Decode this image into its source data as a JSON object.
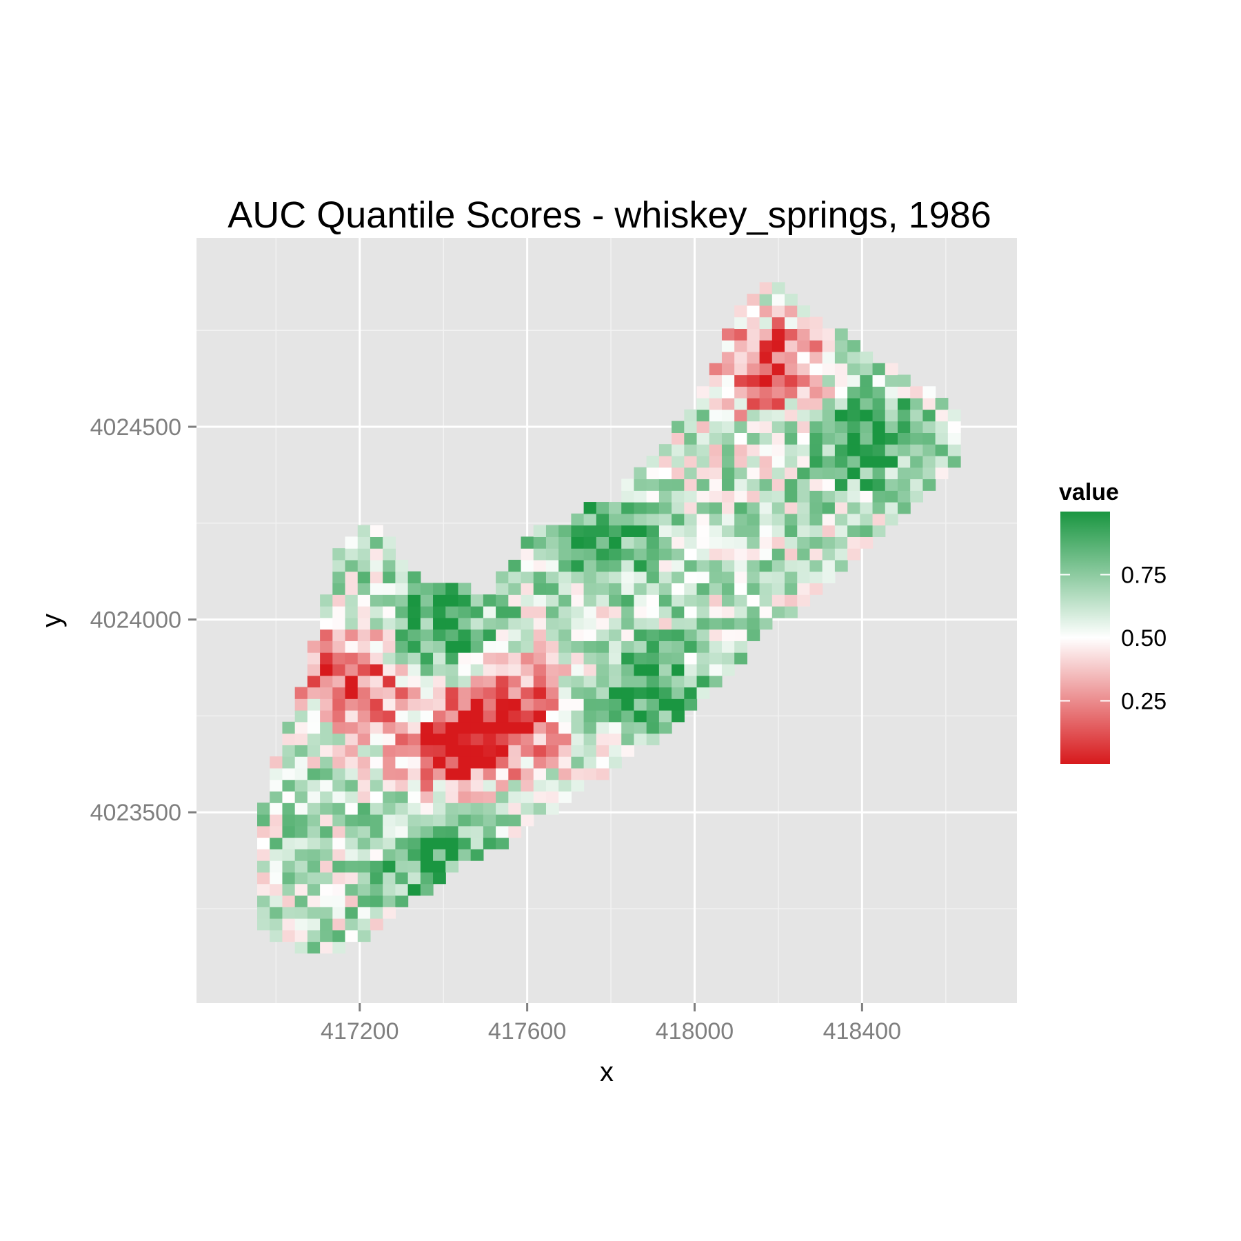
{
  "chart_data": {
    "type": "heatmap",
    "title": "AUC Quantile Scores - whiskey_springs, 1986",
    "xlabel": "x",
    "ylabel": "y",
    "xlim": [
      416810,
      418770
    ],
    "ylim": [
      4023005,
      4024990
    ],
    "x_ticks": [
      417200,
      417600,
      418000,
      418400
    ],
    "x_tick_labels": [
      "417200",
      "417600",
      "418000",
      "418400"
    ],
    "y_ticks": [
      4023500,
      4024000,
      4024500
    ],
    "y_tick_labels": [
      "4023500",
      "4024000",
      "4024500"
    ],
    "grid": true,
    "cell_size": 30,
    "legend": {
      "title": "value",
      "position": "right",
      "breaks": [
        0.25,
        0.5,
        0.75
      ],
      "break_labels": [
        "0.25",
        "0.50",
        "0.75"
      ],
      "range": [
        0.0,
        1.0
      ],
      "colors": {
        "low": "#d7191c",
        "mid": "#ffffff",
        "high": "#1a9641"
      }
    },
    "region": {
      "note": "values sampled over an irregular diagonal region (SW to NE)",
      "columns": [
        {
          "x": 416960,
          "y_min": 4023200,
          "y_max": 4023500
        },
        {
          "x": 417020,
          "y_min": 4023170,
          "y_max": 4023700
        },
        {
          "x": 417080,
          "y_min": 4023140,
          "y_max": 4023900
        },
        {
          "x": 417140,
          "y_min": 4023140,
          "y_max": 4024160
        },
        {
          "x": 417200,
          "y_min": 4023170,
          "y_max": 4024230
        },
        {
          "x": 417260,
          "y_min": 4023230,
          "y_max": 4024230
        },
        {
          "x": 417320,
          "y_min": 4023280,
          "y_max": 4024120
        },
        {
          "x": 417380,
          "y_min": 4023310,
          "y_max": 4024090
        },
        {
          "x": 417440,
          "y_min": 4023370,
          "y_max": 4024090
        },
        {
          "x": 417500,
          "y_min": 4023400,
          "y_max": 4024060
        },
        {
          "x": 417560,
          "y_min": 4023430,
          "y_max": 4024150
        },
        {
          "x": 417620,
          "y_min": 4023490,
          "y_max": 4024230
        },
        {
          "x": 417680,
          "y_min": 4023520,
          "y_max": 4024250
        },
        {
          "x": 417740,
          "y_min": 4023580,
          "y_max": 4024290
        },
        {
          "x": 417800,
          "y_min": 4023610,
          "y_max": 4024290
        },
        {
          "x": 417860,
          "y_min": 4023670,
          "y_max": 4024390
        },
        {
          "x": 417920,
          "y_min": 4023700,
          "y_max": 4024450
        },
        {
          "x": 417980,
          "y_min": 4023760,
          "y_max": 4024530
        },
        {
          "x": 418040,
          "y_min": 4023820,
          "y_max": 4024620
        },
        {
          "x": 418100,
          "y_min": 4023880,
          "y_max": 4024810
        },
        {
          "x": 418160,
          "y_min": 4023960,
          "y_max": 4024880
        },
        {
          "x": 418220,
          "y_min": 4024010,
          "y_max": 4024850
        },
        {
          "x": 418280,
          "y_min": 4024060,
          "y_max": 4024800
        },
        {
          "x": 418340,
          "y_min": 4024120,
          "y_max": 4024750
        },
        {
          "x": 418400,
          "y_min": 4024180,
          "y_max": 4024700
        },
        {
          "x": 418460,
          "y_min": 4024240,
          "y_max": 4024660
        },
        {
          "x": 418520,
          "y_min": 4024300,
          "y_max": 4024620
        },
        {
          "x": 418580,
          "y_min": 4024360,
          "y_max": 4024590
        },
        {
          "x": 418640,
          "y_min": 4024430,
          "y_max": 4024530
        }
      ],
      "hotspots_low": [
        {
          "x": 417170,
          "y": 4023850,
          "value": 0.05
        },
        {
          "x": 417420,
          "y": 4023660,
          "value": 0.1
        },
        {
          "x": 418180,
          "y": 4024660,
          "value": 0.05
        },
        {
          "x": 417560,
          "y": 4023750,
          "value": 0.1
        }
      ],
      "hotspots_high": [
        {
          "x": 417400,
          "y": 4024000,
          "value": 0.95
        },
        {
          "x": 417780,
          "y": 4024230,
          "value": 0.95
        },
        {
          "x": 417380,
          "y": 4023380,
          "value": 0.95
        },
        {
          "x": 417900,
          "y": 4023800,
          "value": 0.95
        },
        {
          "x": 418400,
          "y": 4024470,
          "value": 0.9
        }
      ]
    }
  }
}
